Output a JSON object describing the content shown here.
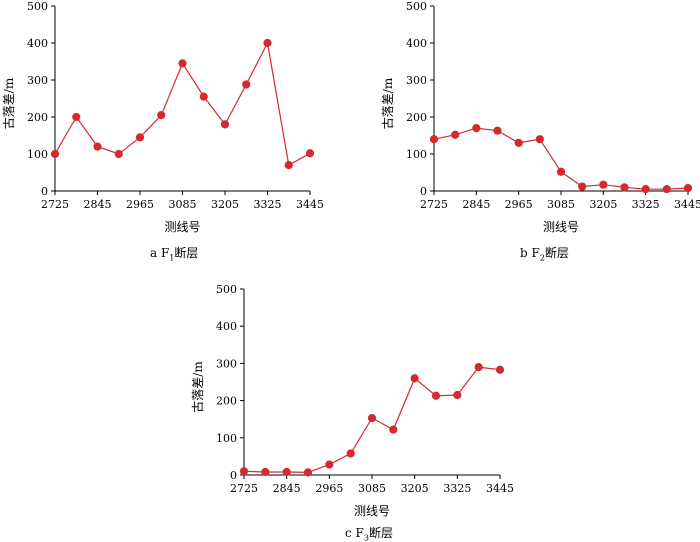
{
  "chart_data": [
    {
      "type": "line",
      "caption": {
        "prefix": "a  F",
        "sub": "1",
        "suffix": "断层"
      },
      "xlabel": "测线号",
      "ylabel": "古落差/m",
      "ylim": [
        0,
        500
      ],
      "xlim": [
        2725,
        3445
      ],
      "yticks": [
        "0",
        "100",
        "200",
        "300",
        "400",
        "500"
      ],
      "xticks": [
        "2725",
        "2845",
        "2965",
        "3085",
        "3205",
        "3325",
        "3445"
      ],
      "x": [
        2725,
        2785,
        2845,
        2905,
        2965,
        3025,
        3085,
        3145,
        3205,
        3265,
        3325,
        3385,
        3445
      ],
      "series": [
        {
          "values": [
            100,
            200,
            120,
            100,
            145,
            205,
            345,
            255,
            180,
            288,
            400,
            70,
            102
          ]
        }
      ],
      "color": "#d42a2f"
    },
    {
      "type": "line",
      "caption": {
        "prefix": "b  F",
        "sub": "2",
        "suffix": "断层"
      },
      "xlabel": "测线号",
      "ylabel": "古落差/m",
      "ylim": [
        0,
        500
      ],
      "xlim": [
        2725,
        3445
      ],
      "yticks": [
        "0",
        "100",
        "200",
        "300",
        "400",
        "500"
      ],
      "xticks": [
        "2725",
        "2845",
        "2965",
        "3085",
        "3205",
        "3325",
        "3445"
      ],
      "x": [
        2725,
        2785,
        2845,
        2905,
        2965,
        3025,
        3085,
        3145,
        3205,
        3265,
        3325,
        3385,
        3445
      ],
      "series": [
        {
          "values": [
            140,
            152,
            170,
            163,
            130,
            140,
            52,
            12,
            17,
            10,
            5,
            5,
            8
          ]
        }
      ],
      "color": "#d42a2f"
    },
    {
      "type": "line",
      "caption": {
        "prefix": "c  F",
        "sub": "3",
        "suffix": "断层"
      },
      "xlabel": "测线号",
      "ylabel": "古落差/m",
      "ylim": [
        0,
        500
      ],
      "xlim": [
        2725,
        3445
      ],
      "yticks": [
        "0",
        "100",
        "200",
        "300",
        "400",
        "500"
      ],
      "xticks": [
        "2725",
        "2845",
        "2965",
        "3085",
        "3205",
        "3325",
        "3445"
      ],
      "x": [
        2725,
        2785,
        2845,
        2905,
        2965,
        3025,
        3085,
        3145,
        3205,
        3265,
        3325,
        3385,
        3445
      ],
      "series": [
        {
          "values": [
            10,
            8,
            8,
            7,
            28,
            58,
            153,
            122,
            260,
            213,
            215,
            290,
            283
          ]
        }
      ],
      "color": "#d42a2f"
    }
  ]
}
